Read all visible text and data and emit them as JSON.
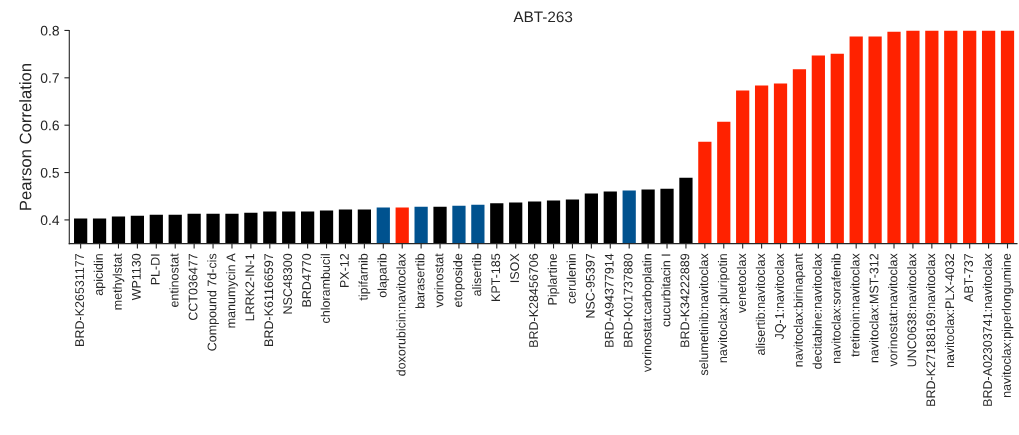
{
  "chart_data": {
    "type": "bar",
    "title": "ABT-263",
    "ylabel": "Pearson Correlation",
    "categories": [
      "BRD-K26531177",
      "apicidin",
      "methylstat",
      "WP1130",
      "PL-DI",
      "entinostat",
      "CCT036477",
      "Compound 7d-cis",
      "manumycin A",
      "LRRK2-IN-1",
      "BRD-K61166597",
      "NSC48300",
      "BRD4770",
      "chlorambucil",
      "PX-12",
      "tipifarnib",
      "olaparib",
      "doxorubicin:navitoclax",
      "barasertib",
      "vorinostat",
      "etoposide",
      "alisertib",
      "KPT-185",
      "ISOX",
      "BRD-K28456706",
      "Piplartine",
      "cerulenin",
      "NSC-95397",
      "BRD-A94377914",
      "BRD-K01737880",
      "vorinostat:carboplatin",
      "cucurbitacin I",
      "BRD-K34222889",
      "selumetinib:navitoclax",
      "navitoclax:pluripotin",
      "venetoclax",
      "alisertib:navitoclax",
      "JQ-1:navitoclax",
      "navitoclax:birinapant",
      "decitabine:navitoclax",
      "navitoclax:sorafenib",
      "tretinoin:navitoclax",
      "navitoclax:MST-312",
      "vorinostat:navitoclax",
      "UNC0638:navitoclax",
      "BRD-K27188169:navitoclax",
      "navitoclax:PLX-4032",
      "ABT-737",
      "BRD-A02303741:navitoclax",
      "navitoclax:piperlongumine"
    ],
    "values": [
      0.403,
      0.403,
      0.407,
      0.409,
      0.411,
      0.411,
      0.413,
      0.413,
      0.413,
      0.415,
      0.418,
      0.418,
      0.418,
      0.42,
      0.422,
      0.422,
      0.426,
      0.426,
      0.428,
      0.428,
      0.43,
      0.432,
      0.435,
      0.437,
      0.439,
      0.441,
      0.443,
      0.456,
      0.46,
      0.462,
      0.464,
      0.466,
      0.489,
      0.565,
      0.607,
      0.673,
      0.684,
      0.688,
      0.718,
      0.747,
      0.751,
      0.787,
      0.787,
      0.797,
      0.8,
      0.8,
      0.8,
      0.8,
      0.8,
      0.8
    ],
    "colors": [
      "#000000",
      "#000000",
      "#000000",
      "#000000",
      "#000000",
      "#000000",
      "#000000",
      "#000000",
      "#000000",
      "#000000",
      "#000000",
      "#000000",
      "#000000",
      "#000000",
      "#000000",
      "#000000",
      "#00528f",
      "#ff2200",
      "#00528f",
      "#000000",
      "#00528f",
      "#00528f",
      "#000000",
      "#000000",
      "#000000",
      "#000000",
      "#000000",
      "#000000",
      "#000000",
      "#00528f",
      "#000000",
      "#000000",
      "#000000",
      "#ff2200",
      "#ff2200",
      "#ff2200",
      "#ff2200",
      "#ff2200",
      "#ff2200",
      "#ff2200",
      "#ff2200",
      "#ff2200",
      "#ff2200",
      "#ff2200",
      "#ff2200",
      "#ff2200",
      "#ff2200",
      "#ff2200",
      "#ff2200",
      "#ff2200"
    ],
    "ylim": [
      0.35,
      0.8
    ],
    "yticks": [
      0.4,
      0.5,
      0.6,
      0.7,
      0.8
    ],
    "grid": false
  }
}
